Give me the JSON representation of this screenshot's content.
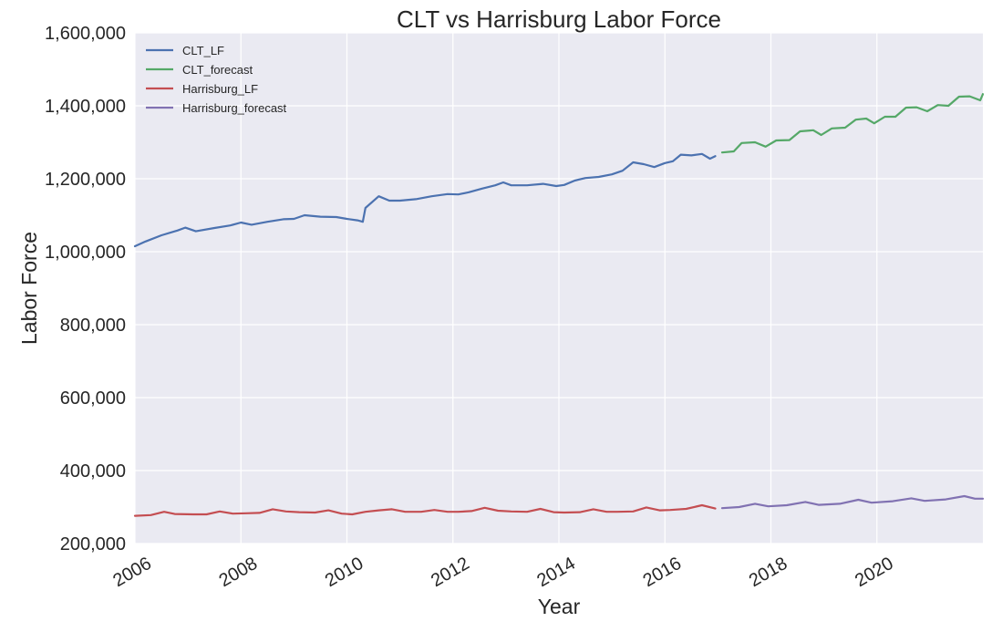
{
  "chart_data": {
    "type": "line",
    "title": "CLT vs Harrisburg Labor Force",
    "xlabel": "Year",
    "ylabel": "Labor Force",
    "xlim": [
      2006.0,
      2022.0
    ],
    "ylim": [
      200000,
      1600000
    ],
    "x_ticks": [
      2006,
      2008,
      2010,
      2012,
      2014,
      2016,
      2018,
      2020
    ],
    "x_tick_labels": [
      "2006",
      "2008",
      "2010",
      "2012",
      "2014",
      "2016",
      "2018",
      "2020"
    ],
    "y_ticks": [
      200000,
      400000,
      600000,
      800000,
      1000000,
      1200000,
      1400000,
      1600000
    ],
    "y_tick_labels": [
      "200,000",
      "400,000",
      "600,000",
      "800,000",
      "1,000,000",
      "1,200,000",
      "1,400,000",
      "1,600,000"
    ],
    "grid": true,
    "legend_position": "top-left",
    "background": "#eaeaf2",
    "series": [
      {
        "name": "CLT_LF",
        "color": "#4c72b0",
        "points": [
          [
            2006.0,
            1015000
          ],
          [
            2006.2,
            1028000
          ],
          [
            2006.5,
            1045000
          ],
          [
            2006.8,
            1058000
          ],
          [
            2006.95,
            1066000
          ],
          [
            2007.15,
            1056000
          ],
          [
            2007.5,
            1065000
          ],
          [
            2007.8,
            1072000
          ],
          [
            2008.0,
            1080000
          ],
          [
            2008.2,
            1074000
          ],
          [
            2008.5,
            1082000
          ],
          [
            2008.8,
            1089000
          ],
          [
            2009.0,
            1090000
          ],
          [
            2009.2,
            1100000
          ],
          [
            2009.5,
            1096000
          ],
          [
            2009.8,
            1095000
          ],
          [
            2010.0,
            1090000
          ],
          [
            2010.2,
            1086000
          ],
          [
            2010.3,
            1082000
          ],
          [
            2010.35,
            1120000
          ],
          [
            2010.6,
            1152000
          ],
          [
            2010.8,
            1140000
          ],
          [
            2011.0,
            1140000
          ],
          [
            2011.3,
            1144000
          ],
          [
            2011.6,
            1152000
          ],
          [
            2011.9,
            1158000
          ],
          [
            2012.1,
            1157000
          ],
          [
            2012.3,
            1163000
          ],
          [
            2012.55,
            1173000
          ],
          [
            2012.8,
            1182000
          ],
          [
            2012.95,
            1190000
          ],
          [
            2013.1,
            1182000
          ],
          [
            2013.4,
            1182000
          ],
          [
            2013.7,
            1186000
          ],
          [
            2013.95,
            1180000
          ],
          [
            2014.1,
            1183000
          ],
          [
            2014.3,
            1195000
          ],
          [
            2014.5,
            1202000
          ],
          [
            2014.75,
            1205000
          ],
          [
            2015.0,
            1212000
          ],
          [
            2015.2,
            1222000
          ],
          [
            2015.4,
            1245000
          ],
          [
            2015.6,
            1240000
          ],
          [
            2015.8,
            1232000
          ],
          [
            2016.0,
            1243000
          ],
          [
            2016.15,
            1248000
          ],
          [
            2016.3,
            1266000
          ],
          [
            2016.5,
            1264000
          ],
          [
            2016.7,
            1268000
          ],
          [
            2016.85,
            1255000
          ],
          [
            2016.95,
            1262000
          ]
        ]
      },
      {
        "name": "CLT_forecast",
        "color": "#55a868",
        "points": [
          [
            2017.08,
            1272000
          ],
          [
            2017.3,
            1275000
          ],
          [
            2017.45,
            1298000
          ],
          [
            2017.7,
            1300000
          ],
          [
            2017.9,
            1288000
          ],
          [
            2018.1,
            1305000
          ],
          [
            2018.35,
            1306000
          ],
          [
            2018.55,
            1330000
          ],
          [
            2018.8,
            1333000
          ],
          [
            2018.95,
            1320000
          ],
          [
            2019.15,
            1338000
          ],
          [
            2019.4,
            1340000
          ],
          [
            2019.6,
            1362000
          ],
          [
            2019.8,
            1365000
          ],
          [
            2019.95,
            1352000
          ],
          [
            2020.15,
            1370000
          ],
          [
            2020.35,
            1370000
          ],
          [
            2020.55,
            1395000
          ],
          [
            2020.75,
            1396000
          ],
          [
            2020.95,
            1385000
          ],
          [
            2021.15,
            1402000
          ],
          [
            2021.35,
            1400000
          ],
          [
            2021.55,
            1425000
          ],
          [
            2021.75,
            1426000
          ],
          [
            2021.95,
            1415000
          ],
          [
            2022.0,
            1432000
          ]
        ]
      },
      {
        "name": "Harrisburg_LF",
        "color": "#c44e52",
        "points": [
          [
            2006.0,
            276000
          ],
          [
            2006.3,
            278000
          ],
          [
            2006.55,
            287000
          ],
          [
            2006.75,
            281000
          ],
          [
            2007.1,
            280000
          ],
          [
            2007.35,
            280000
          ],
          [
            2007.6,
            288000
          ],
          [
            2007.85,
            282000
          ],
          [
            2008.1,
            283000
          ],
          [
            2008.35,
            284000
          ],
          [
            2008.6,
            294000
          ],
          [
            2008.85,
            288000
          ],
          [
            2009.1,
            286000
          ],
          [
            2009.4,
            285000
          ],
          [
            2009.65,
            291000
          ],
          [
            2009.9,
            282000
          ],
          [
            2010.1,
            280000
          ],
          [
            2010.35,
            287000
          ],
          [
            2010.6,
            291000
          ],
          [
            2010.85,
            294000
          ],
          [
            2011.1,
            287000
          ],
          [
            2011.4,
            287000
          ],
          [
            2011.65,
            292000
          ],
          [
            2011.9,
            287000
          ],
          [
            2012.1,
            287000
          ],
          [
            2012.35,
            289000
          ],
          [
            2012.6,
            298000
          ],
          [
            2012.85,
            290000
          ],
          [
            2013.1,
            288000
          ],
          [
            2013.4,
            287000
          ],
          [
            2013.65,
            295000
          ],
          [
            2013.9,
            286000
          ],
          [
            2014.1,
            285000
          ],
          [
            2014.4,
            286000
          ],
          [
            2014.65,
            294000
          ],
          [
            2014.9,
            287000
          ],
          [
            2015.1,
            287000
          ],
          [
            2015.4,
            288000
          ],
          [
            2015.65,
            299000
          ],
          [
            2015.9,
            291000
          ],
          [
            2016.1,
            292000
          ],
          [
            2016.4,
            295000
          ],
          [
            2016.7,
            305000
          ],
          [
            2016.95,
            296000
          ]
        ]
      },
      {
        "name": "Harrisburg_forecast",
        "color": "#8172b2",
        "points": [
          [
            2017.08,
            297000
          ],
          [
            2017.4,
            300000
          ],
          [
            2017.7,
            309000
          ],
          [
            2017.95,
            302000
          ],
          [
            2018.3,
            305000
          ],
          [
            2018.65,
            314000
          ],
          [
            2018.9,
            306000
          ],
          [
            2019.3,
            309000
          ],
          [
            2019.65,
            320000
          ],
          [
            2019.9,
            312000
          ],
          [
            2020.3,
            316000
          ],
          [
            2020.65,
            324000
          ],
          [
            2020.9,
            317000
          ],
          [
            2021.3,
            321000
          ],
          [
            2021.65,
            330000
          ],
          [
            2021.85,
            323000
          ],
          [
            2022.0,
            323000
          ]
        ]
      }
    ]
  }
}
